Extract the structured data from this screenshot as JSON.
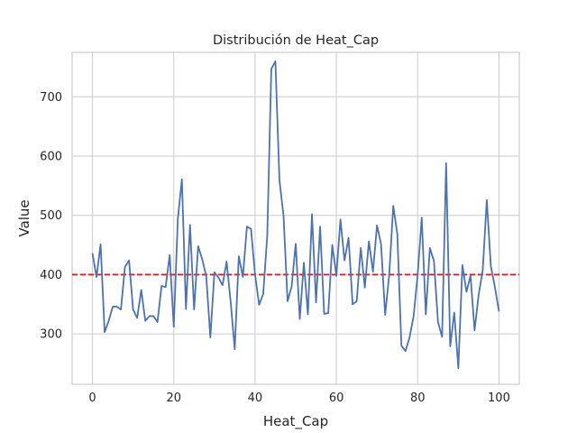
{
  "chart_data": {
    "type": "line",
    "title": "Distribución de Heat_Cap",
    "xlabel": "Heat_Cap",
    "ylabel": "Value",
    "xlim": [
      -5,
      105
    ],
    "ylim": [
      215,
      775
    ],
    "xticks": [
      0,
      20,
      40,
      60,
      80,
      100
    ],
    "yticks": [
      300,
      400,
      500,
      600,
      700
    ],
    "grid": true,
    "line_color": "#4c72b0",
    "reference_line": {
      "y": 400,
      "color": "#e41a1c",
      "style": "dashed"
    },
    "series": [
      {
        "x": [
          0,
          1,
          2,
          3,
          4,
          5,
          6,
          7,
          8,
          9,
          10,
          11,
          12,
          13,
          14,
          15,
          16,
          17,
          18,
          19,
          20,
          21,
          22,
          23,
          24,
          25,
          26,
          27,
          28,
          29,
          30,
          31,
          32,
          33,
          34,
          35,
          36,
          37,
          38,
          39,
          40,
          41,
          42,
          43,
          44,
          45,
          46,
          47,
          48,
          49,
          50,
          51,
          52,
          53,
          54,
          55,
          56,
          57,
          58,
          59,
          60,
          61,
          62,
          63,
          64,
          65,
          66,
          67,
          68,
          69,
          70,
          71,
          72,
          73,
          74,
          75,
          76,
          77,
          78,
          79,
          80,
          81,
          82,
          83,
          84,
          85,
          86,
          87,
          88,
          89,
          90,
          91,
          92,
          93,
          94,
          95,
          96,
          97,
          98,
          99,
          100
        ],
        "values": [
          436,
          396,
          451,
          303,
          322,
          346,
          346,
          341,
          413,
          424,
          341,
          327,
          374,
          322,
          330,
          330,
          320,
          381,
          379,
          433,
          312,
          494,
          561,
          342,
          484,
          341,
          448,
          426,
          397,
          294,
          404,
          395,
          382,
          422,
          354,
          274,
          431,
          396,
          481,
          477,
          400,
          349,
          367,
          466,
          747,
          760,
          559,
          500,
          355,
          380,
          452,
          325,
          420,
          333,
          502,
          353,
          481,
          334,
          335,
          450,
          398,
          493,
          424,
          462,
          350,
          355,
          445,
          378,
          456,
          405,
          483,
          451,
          332,
          400,
          516,
          468,
          280,
          271,
          294,
          330,
          400,
          496,
          333,
          445,
          423,
          320,
          295,
          588,
          279,
          336,
          242,
          416,
          371,
          398,
          306,
          366,
          407,
          526,
          414,
          379,
          338
        ]
      }
    ]
  }
}
